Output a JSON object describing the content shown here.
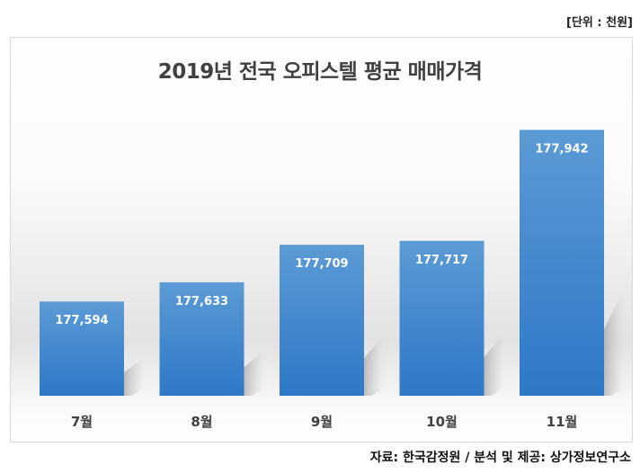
{
  "unit_label": "[단위 : 천원]",
  "source": "자료: 한국감정원 / 분석 및 제공: 상가정보연구소",
  "chart_data": {
    "type": "bar",
    "title": "2019년 전국 오피스텔 평균 매매가격",
    "categories": [
      "7월",
      "8월",
      "9월",
      "10월",
      "11월"
    ],
    "values": [
      177594,
      177633,
      177709,
      177717,
      177942
    ],
    "data_labels": [
      "177,594",
      "177,633",
      "177,709",
      "177,717",
      "177,942"
    ],
    "ylim": [
      177403,
      177950
    ],
    "grid": false,
    "bar_color_top": "#5b9bd5",
    "bar_color_bottom": "#2e78c7"
  }
}
